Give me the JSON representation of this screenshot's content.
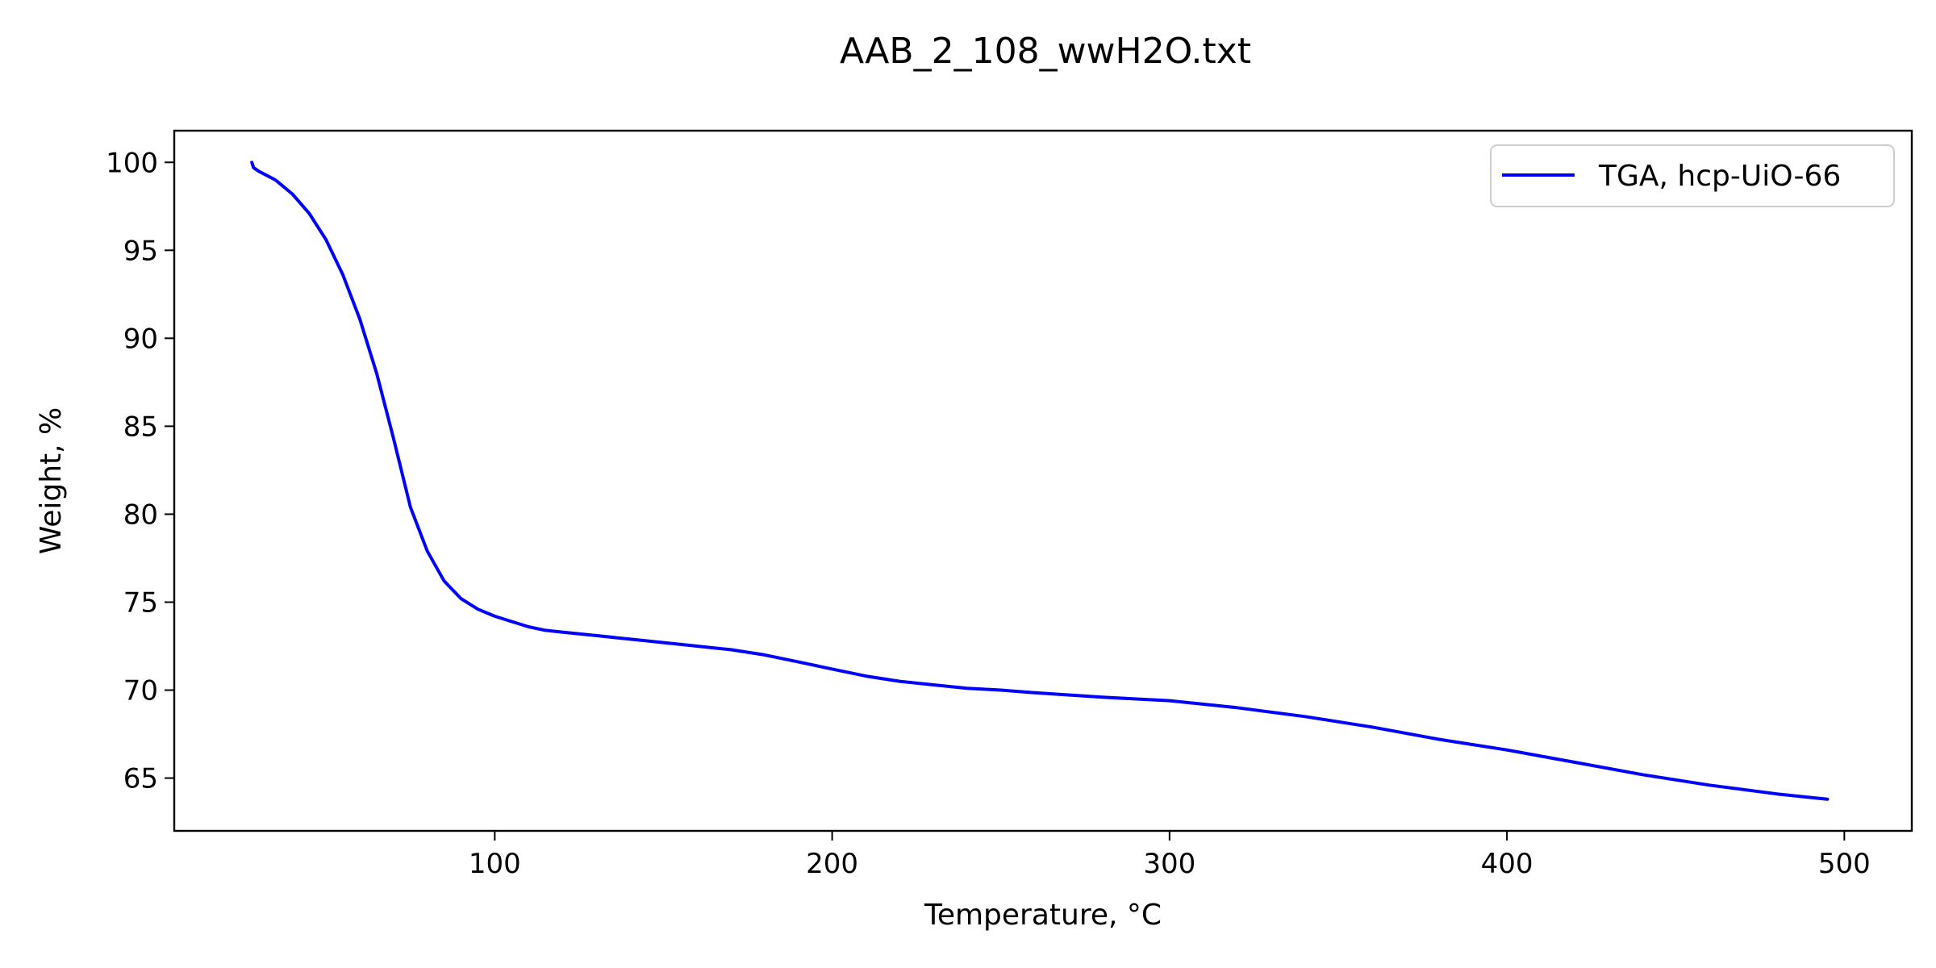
{
  "chart_data": {
    "type": "line",
    "title": "AAB_2_108_wwH2O.txt",
    "xlabel": "Temperature, °C",
    "ylabel": "Weight, %",
    "xlim": [
      5,
      520
    ],
    "ylim": [
      62,
      101.8
    ],
    "xticks": [
      100,
      200,
      300,
      400,
      500
    ],
    "yticks": [
      65,
      70,
      75,
      80,
      85,
      90,
      95,
      100
    ],
    "grid": false,
    "legend_position": "top-right",
    "series": [
      {
        "name": "TGA, hcp-UiO-66",
        "color": "#0000ff",
        "x": [
          28,
          28.5,
          30,
          35,
          40,
          45,
          50,
          55,
          60,
          65,
          70,
          75,
          80,
          85,
          90,
          95,
          100,
          105,
          110,
          115,
          120,
          130,
          140,
          150,
          160,
          170,
          180,
          190,
          200,
          210,
          220,
          230,
          240,
          250,
          260,
          280,
          300,
          320,
          340,
          360,
          380,
          400,
          420,
          440,
          460,
          480,
          490,
          495
        ],
        "y": [
          100.0,
          99.7,
          99.5,
          99.0,
          98.2,
          97.1,
          95.6,
          93.6,
          91.1,
          88.0,
          84.3,
          80.4,
          77.9,
          76.2,
          75.2,
          74.6,
          74.2,
          73.9,
          73.6,
          73.4,
          73.3,
          73.1,
          72.9,
          72.7,
          72.5,
          72.3,
          72.0,
          71.6,
          71.2,
          70.8,
          70.5,
          70.3,
          70.1,
          70.0,
          69.85,
          69.6,
          69.4,
          69.0,
          68.5,
          67.9,
          67.2,
          66.6,
          65.9,
          65.2,
          64.6,
          64.1,
          63.9,
          63.8
        ]
      }
    ]
  }
}
